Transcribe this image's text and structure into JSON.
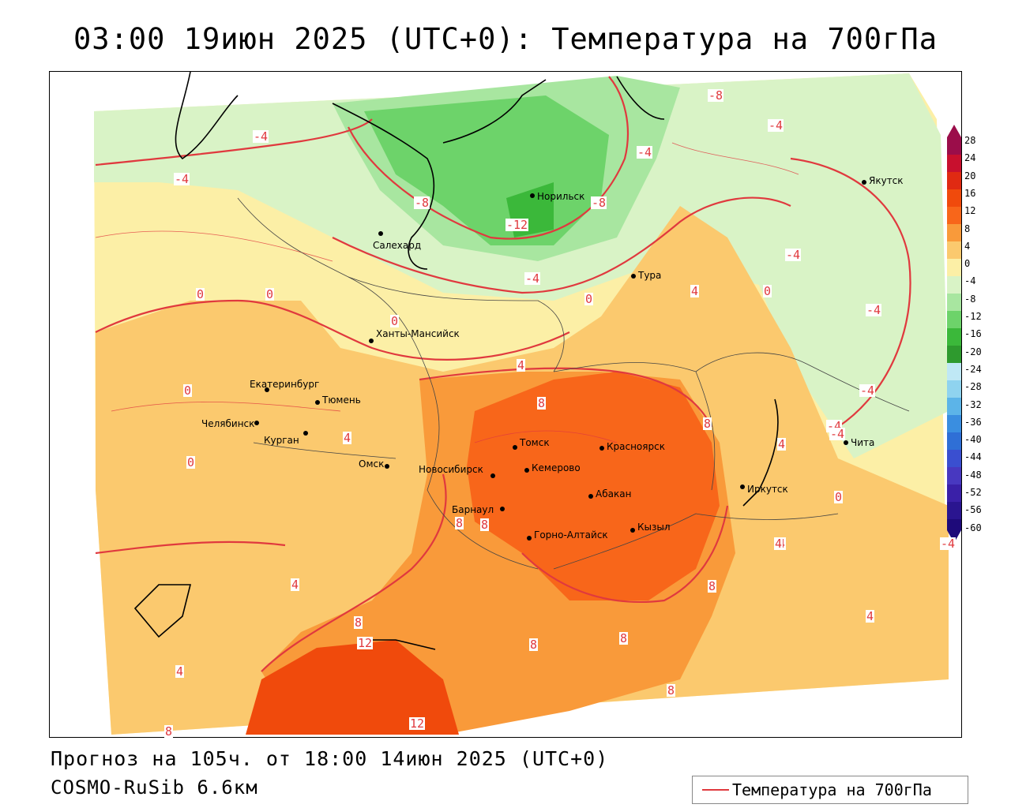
{
  "title": "03:00 19июн 2025 (UTC+0): Температура на 700гПа",
  "footer": {
    "forecast": "Прогноз на 105ч. от 18:00 14июн 2025 (UTC+0)",
    "model": "COSMO-RuSib 6.6км"
  },
  "legend_key": {
    "line_label": "Температура на 700гПа",
    "line_color": "#e0393e"
  },
  "colorbar": {
    "labels": [
      "28",
      "24",
      "20",
      "16",
      "12",
      "8",
      "4",
      "0",
      "-4",
      "-8",
      "-12",
      "-16",
      "-20",
      "-24",
      "-28",
      "-32",
      "-36",
      "-40",
      "-44",
      "-48",
      "-52",
      "-56",
      "-60"
    ],
    "colors": [
      "#9b0d4a",
      "#c8102e",
      "#e02a12",
      "#f04a0c",
      "#f8661a",
      "#f99a3a",
      "#fbc96e",
      "#fcefa6",
      "#d9f3c6",
      "#a8e6a0",
      "#6dd36a",
      "#3bb83a",
      "#2e9a2e",
      "#bfe8f5",
      "#8fd3ef",
      "#5cb4e8",
      "#3a8ee0",
      "#2f6fd6",
      "#3a4fd0",
      "#4838c0",
      "#3a20a8",
      "#2a1590",
      "#1e0a7a"
    ]
  },
  "cities": [
    {
      "name": "Норильск"
    },
    {
      "name": "Якутск"
    },
    {
      "name": "Салехард"
    },
    {
      "name": "Тура"
    },
    {
      "name": "Ханты-Мансийск"
    },
    {
      "name": "Екатеринбург"
    },
    {
      "name": "Тюмень"
    },
    {
      "name": "Челябинск"
    },
    {
      "name": "Курган"
    },
    {
      "name": "Омск"
    },
    {
      "name": "Новосибирск"
    },
    {
      "name": "Томск"
    },
    {
      "name": "Кемерово"
    },
    {
      "name": "Красноярск"
    },
    {
      "name": "Абакан"
    },
    {
      "name": "Барнаул"
    },
    {
      "name": "Горно-Алтайск"
    },
    {
      "name": "Кызыл"
    },
    {
      "name": "Иркутск"
    },
    {
      "name": "Чита"
    }
  ],
  "isotherm_labels": [
    "-8",
    "-4",
    "-4",
    "-4",
    "-4",
    "-8",
    "-12",
    "-8",
    "-4",
    "-4",
    "-4",
    "-4",
    "0",
    "0",
    "0",
    "0",
    "0",
    "0",
    "4",
    "4",
    "0",
    "-4",
    "-4",
    "8",
    "8",
    "8",
    "8",
    "4",
    "4",
    "8",
    "8",
    "8",
    "8",
    "4",
    "4",
    "12",
    "12",
    "8",
    "4",
    "-4",
    "4",
    "0",
    "0",
    "4",
    "8"
  ]
}
